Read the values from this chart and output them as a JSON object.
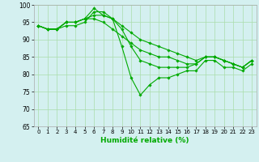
{
  "xlabel": "Humidité relative (%)",
  "ylabel": "",
  "xlim": [
    -0.5,
    23.5
  ],
  "ylim": [
    65,
    100
  ],
  "yticks": [
    65,
    70,
    75,
    80,
    85,
    90,
    95,
    100
  ],
  "xticks": [
    0,
    1,
    2,
    3,
    4,
    5,
    6,
    7,
    8,
    9,
    10,
    11,
    12,
    13,
    14,
    15,
    16,
    17,
    18,
    19,
    20,
    21,
    22,
    23
  ],
  "line_color": "#00aa00",
  "bg_color": "#d4f0f0",
  "grid_color": "#aaddaa",
  "lines": [
    [
      94,
      93,
      93,
      94,
      94,
      95,
      98,
      98,
      96,
      88,
      79,
      74,
      77,
      79,
      79,
      80,
      81,
      81,
      84,
      84,
      82,
      82,
      81,
      83
    ],
    [
      94,
      93,
      93,
      95,
      95,
      96,
      96,
      95,
      93,
      91,
      89,
      87,
      86,
      85,
      85,
      84,
      83,
      83,
      85,
      85,
      84,
      83,
      82,
      84
    ],
    [
      94,
      93,
      93,
      95,
      95,
      96,
      97,
      97,
      96,
      94,
      92,
      90,
      89,
      88,
      87,
      86,
      85,
      84,
      85,
      85,
      84,
      83,
      82,
      84
    ],
    [
      94,
      93,
      93,
      95,
      95,
      96,
      99,
      97,
      96,
      93,
      88,
      84,
      83,
      82,
      82,
      82,
      82,
      83,
      85,
      85,
      84,
      83,
      82,
      84
    ]
  ]
}
